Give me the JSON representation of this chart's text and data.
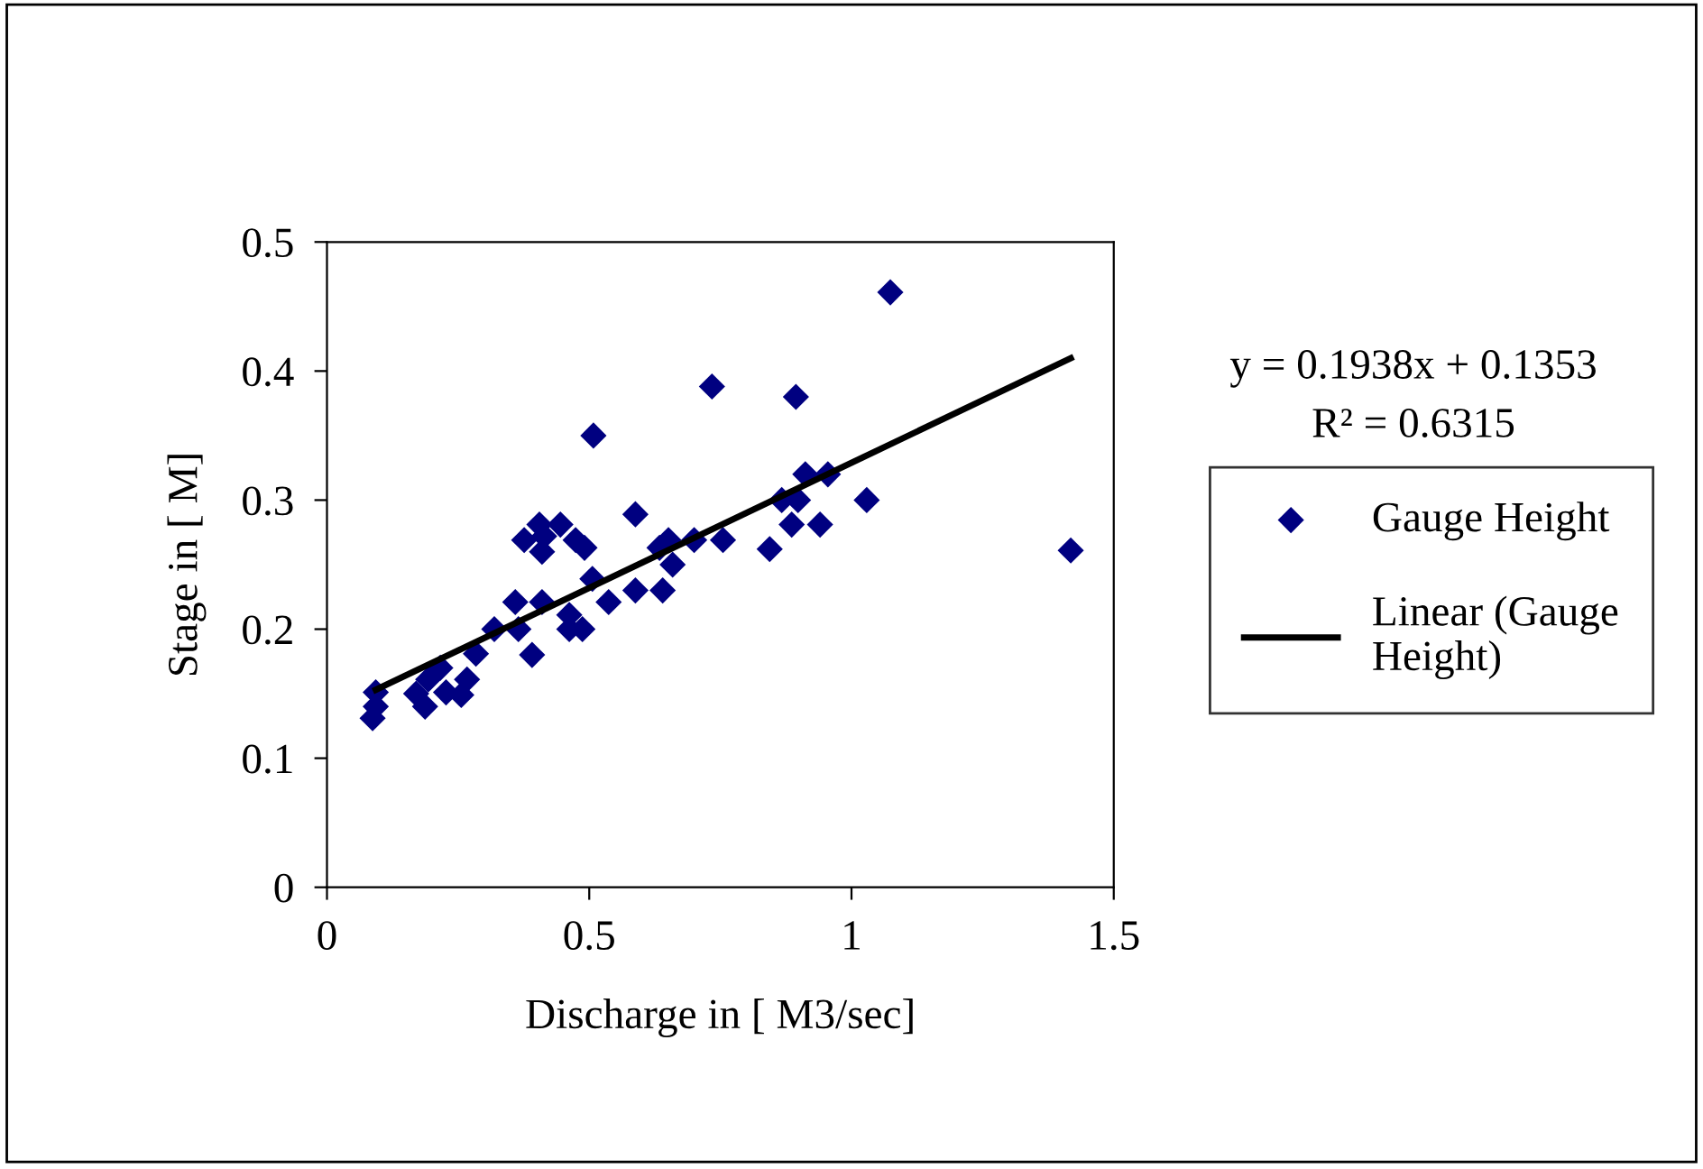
{
  "chart_data": {
    "type": "scatter",
    "xlabel": "Discharge in [ M3/sec]",
    "ylabel": "Stage in [ M]",
    "xlim": [
      0,
      1.5
    ],
    "ylim": [
      0,
      0.5
    ],
    "xticks": [
      0,
      0.5,
      1,
      1.5
    ],
    "yticks": [
      0,
      0.1,
      0.2,
      0.3,
      0.4,
      0.5
    ],
    "grid": false,
    "legend": "right",
    "marker": "diamond",
    "annotations": [
      "y = 0.1938x + 0.1353",
      "R² = 0.6315"
    ],
    "series": [
      {
        "name": "Gauge Height",
        "color": "#000080",
        "x": [
          0.087,
          0.093,
          0.093,
          0.17,
          0.187,
          0.193,
          0.216,
          0.227,
          0.256,
          0.267,
          0.284,
          0.319,
          0.359,
          0.365,
          0.391,
          0.376,
          0.41,
          0.41,
          0.414,
          0.445,
          0.474,
          0.491,
          0.462,
          0.462,
          0.487,
          0.506,
          0.508,
          0.537,
          0.588,
          0.588,
          0.64,
          0.634,
          0.651,
          0.659,
          0.7,
          0.755,
          0.734,
          0.886,
          0.898,
          0.912,
          0.955,
          1.074,
          0.405,
          0.894,
          0.867,
          0.844,
          0.94,
          1.029,
          1.418
        ],
        "values": [
          0.131,
          0.14,
          0.151,
          0.15,
          0.14,
          0.161,
          0.17,
          0.151,
          0.149,
          0.161,
          0.181,
          0.2,
          0.221,
          0.2,
          0.18,
          0.269,
          0.221,
          0.26,
          0.272,
          0.281,
          0.269,
          0.263,
          0.211,
          0.2,
          0.2,
          0.239,
          0.35,
          0.221,
          0.289,
          0.23,
          0.23,
          0.263,
          0.269,
          0.25,
          0.269,
          0.269,
          0.388,
          0.281,
          0.3,
          0.32,
          0.32,
          0.461,
          0.281,
          0.38,
          0.3,
          0.262,
          0.281,
          0.3,
          0.261
        ]
      },
      {
        "name": "Linear (Gauge\nHeight)",
        "type": "line",
        "color": "#000000",
        "line_style": "solid",
        "marker": "none",
        "x": [
          0.093,
          1.418
        ],
        "values": [
          0.153,
          0.41
        ]
      }
    ]
  }
}
